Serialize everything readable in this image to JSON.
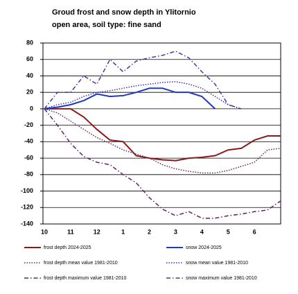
{
  "chart_data": {
    "type": "line",
    "title": "Groud frost and snow depth in Ylitornio",
    "subtitle": "open area, soil type: fine sand",
    "categories": [
      "10",
      null,
      "11",
      null,
      "12",
      null,
      "1",
      null,
      "2",
      null,
      "3",
      null,
      "4",
      null,
      "5",
      null,
      "6",
      null,
      null
    ],
    "ylim": [
      -140,
      80
    ],
    "yticks": [
      -140,
      -120,
      -100,
      -80,
      -60,
      -40,
      -20,
      0,
      20,
      40,
      60,
      80
    ],
    "grid": true,
    "series": [
      {
        "name": "frost depth 2024-2025",
        "color": "#8b1a1a",
        "dash": "solid",
        "values": [
          0,
          0,
          0,
          -10,
          -25,
          -38,
          -40,
          -57,
          -60,
          -62,
          -63,
          -60,
          -59,
          -57,
          -50,
          -48,
          -38,
          -33,
          -33
        ]
      },
      {
        "name": "snow 2024-2025",
        "color": "#2038c0",
        "dash": "solid",
        "values": [
          0,
          2,
          5,
          10,
          18,
          15,
          16,
          20,
          25,
          25,
          20,
          20,
          15,
          0,
          null,
          null,
          null,
          null,
          null
        ]
      },
      {
        "name": "frost depth mean value 1981-2010",
        "color": "#5a2a5a",
        "dash": "dotted",
        "values": [
          0,
          -5,
          -15,
          -25,
          -35,
          -42,
          -50,
          -55,
          -60,
          -68,
          -73,
          -76,
          -78,
          -78,
          -75,
          -70,
          -65,
          -50,
          -48
        ]
      },
      {
        "name": "snow mean value 1981-2010",
        "color": "#3030c0",
        "dash": "dotted",
        "values": [
          0,
          5,
          8,
          15,
          20,
          22,
          25,
          28,
          30,
          32,
          33,
          30,
          25,
          15,
          5,
          0,
          null,
          null,
          null
        ]
      },
      {
        "name": "frost depth maximum value 1981-2010",
        "color": "#602060",
        "dash": "dashdot",
        "values": [
          0,
          -20,
          -42,
          -58,
          -65,
          -68,
          -80,
          -90,
          -108,
          -122,
          -130,
          -125,
          -133,
          -133,
          -130,
          -128,
          -125,
          -123,
          -112
        ]
      },
      {
        "name": "snow maximum value 1981-2010",
        "color": "#3a3aa0",
        "dash": "dashdot",
        "values": [
          0,
          20,
          20,
          40,
          30,
          60,
          45,
          58,
          62,
          65,
          70,
          62,
          45,
          30,
          5,
          0,
          null,
          null,
          null
        ]
      }
    ]
  }
}
